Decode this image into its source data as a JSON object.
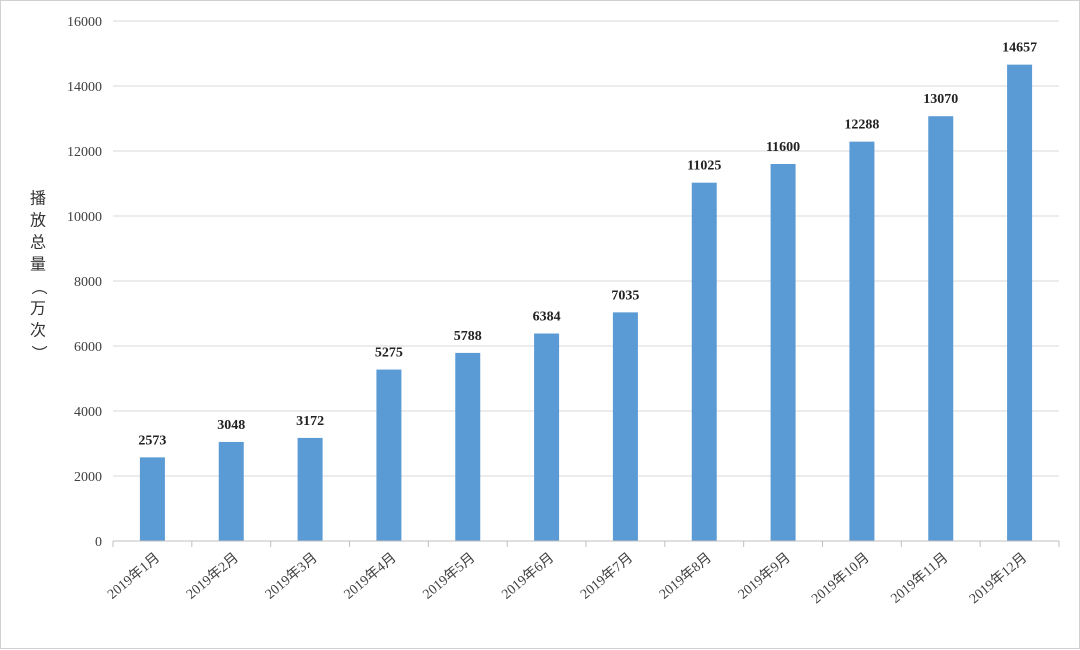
{
  "chart_data": {
    "type": "bar",
    "ylabel": "播放总量（万次）",
    "ylim": [
      0,
      16000
    ],
    "yticks": [
      "0",
      "2000",
      "4000",
      "6000",
      "8000",
      "10000",
      "12000",
      "14000",
      "16000"
    ],
    "grid": true,
    "categories": [
      "2019年1月",
      "2019年2月",
      "2019年3月",
      "2019年4月",
      "2019年5月",
      "2019年6月",
      "2019年7月",
      "2019年8月",
      "2019年9月",
      "2019年10月",
      "2019年11月",
      "2019年12月"
    ],
    "values": [
      2573,
      3048,
      3172,
      5275,
      5788,
      6384,
      7035,
      11025,
      11600,
      12288,
      13070,
      14657
    ],
    "bar_color": "#5b9bd5"
  }
}
